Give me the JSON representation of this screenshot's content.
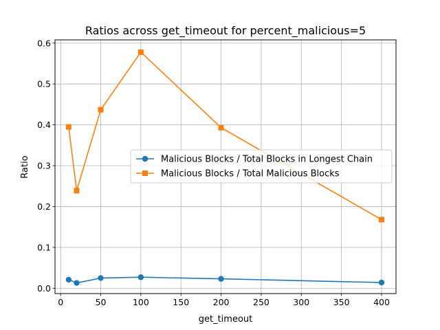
{
  "chart_data": {
    "type": "line",
    "title": "Ratios across get_timeout for percent_malicious=5",
    "xlabel": "get_timeout",
    "ylabel": "Ratio",
    "xlim": [
      -7,
      418
    ],
    "ylim": [
      -0.013,
      0.608
    ],
    "xticks": [
      0,
      50,
      100,
      150,
      200,
      250,
      300,
      350,
      400
    ],
    "xtick_labels": [
      "0",
      "50",
      "100",
      "150",
      "200",
      "250",
      "300",
      "350",
      "400"
    ],
    "yticks": [
      0.0,
      0.1,
      0.2,
      0.3,
      0.4,
      0.5,
      0.6
    ],
    "ytick_labels": [
      "0.0",
      "0.1",
      "0.2",
      "0.3",
      "0.4",
      "0.5",
      "0.6"
    ],
    "grid": true,
    "legend_position": "center-right",
    "x": [
      10,
      20,
      50,
      100,
      200,
      400
    ],
    "series": [
      {
        "name": "Malicious Blocks / Total Blocks in Longest Chain",
        "values": [
          0.021,
          0.013,
          0.025,
          0.027,
          0.023,
          0.014
        ],
        "color": "#1f77b4",
        "marker": "circle"
      },
      {
        "name": "Malicious Blocks / Total Malicious Blocks",
        "values": [
          0.395,
          0.239,
          0.437,
          0.578,
          0.393,
          0.168
        ],
        "color": "#ff7f0e",
        "marker": "square"
      }
    ]
  }
}
